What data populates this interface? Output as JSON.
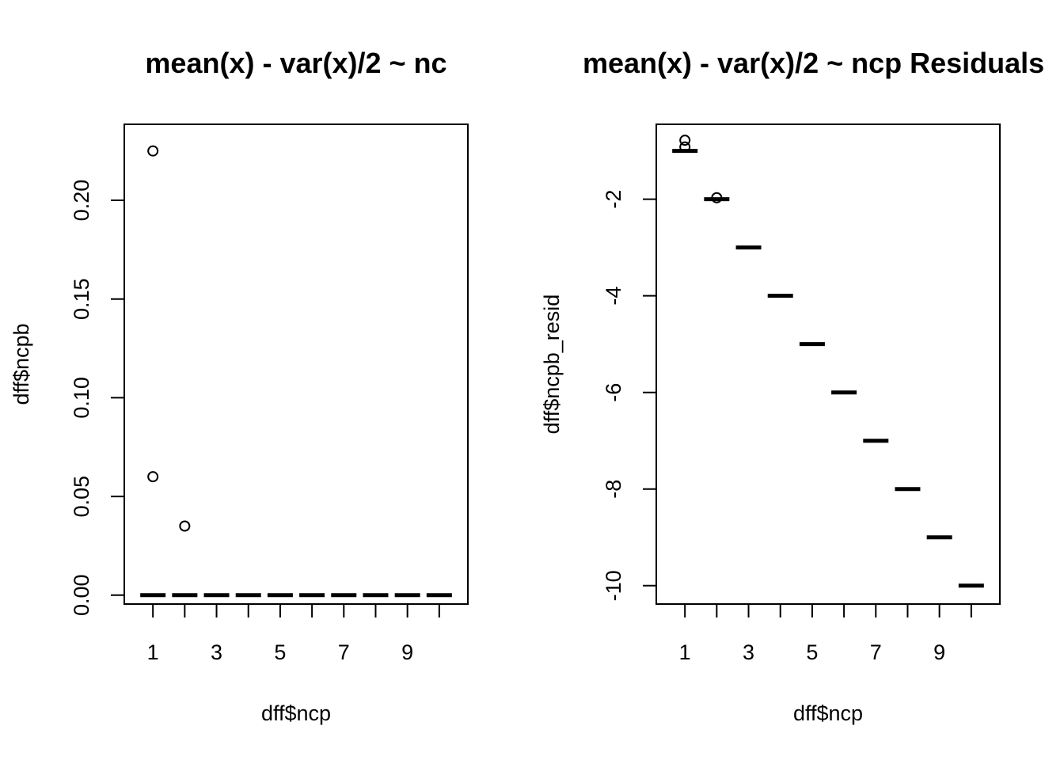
{
  "chart_data": [
    {
      "type": "boxplot",
      "title": "mean(x) - var(x)/2 ~ nc",
      "xlabel": "dff$ncp",
      "ylabel": "dff$ncpb",
      "categories": [
        1,
        2,
        3,
        4,
        5,
        6,
        7,
        8,
        9,
        10
      ],
      "x_tick_labels": [
        "1",
        "3",
        "5",
        "7",
        "9"
      ],
      "y_tick_labels": [
        "0.00",
        "0.05",
        "0.10",
        "0.15",
        "0.20"
      ],
      "ylim": [
        -0.0045,
        0.2385
      ],
      "grid": false,
      "medians": [
        0,
        0,
        0,
        0,
        0,
        0,
        0,
        0,
        0,
        0
      ],
      "outliers": [
        {
          "x": 1,
          "y": 0.225
        },
        {
          "x": 1,
          "y": 0.06
        },
        {
          "x": 2,
          "y": 0.035
        }
      ]
    },
    {
      "type": "boxplot",
      "title": "mean(x) - var(x)/2 ~ ncp Residuals",
      "xlabel": "dff$ncp",
      "ylabel": "dff$ncpb_resid",
      "categories": [
        1,
        2,
        3,
        4,
        5,
        6,
        7,
        8,
        9,
        10
      ],
      "x_tick_labels": [
        "1",
        "3",
        "5",
        "7",
        "9"
      ],
      "y_tick_labels": [
        "-10",
        "-8",
        "-6",
        "-4",
        "-2"
      ],
      "ylim": [
        -10.38,
        -0.45
      ],
      "grid": false,
      "medians": [
        -1,
        -2,
        -3,
        -4,
        -5,
        -6,
        -7,
        -8,
        -9,
        -10
      ],
      "outliers": [
        {
          "x": 1,
          "y": -0.78
        },
        {
          "x": 1,
          "y": -0.92
        },
        {
          "x": 2,
          "y": -1.97
        }
      ]
    }
  ]
}
